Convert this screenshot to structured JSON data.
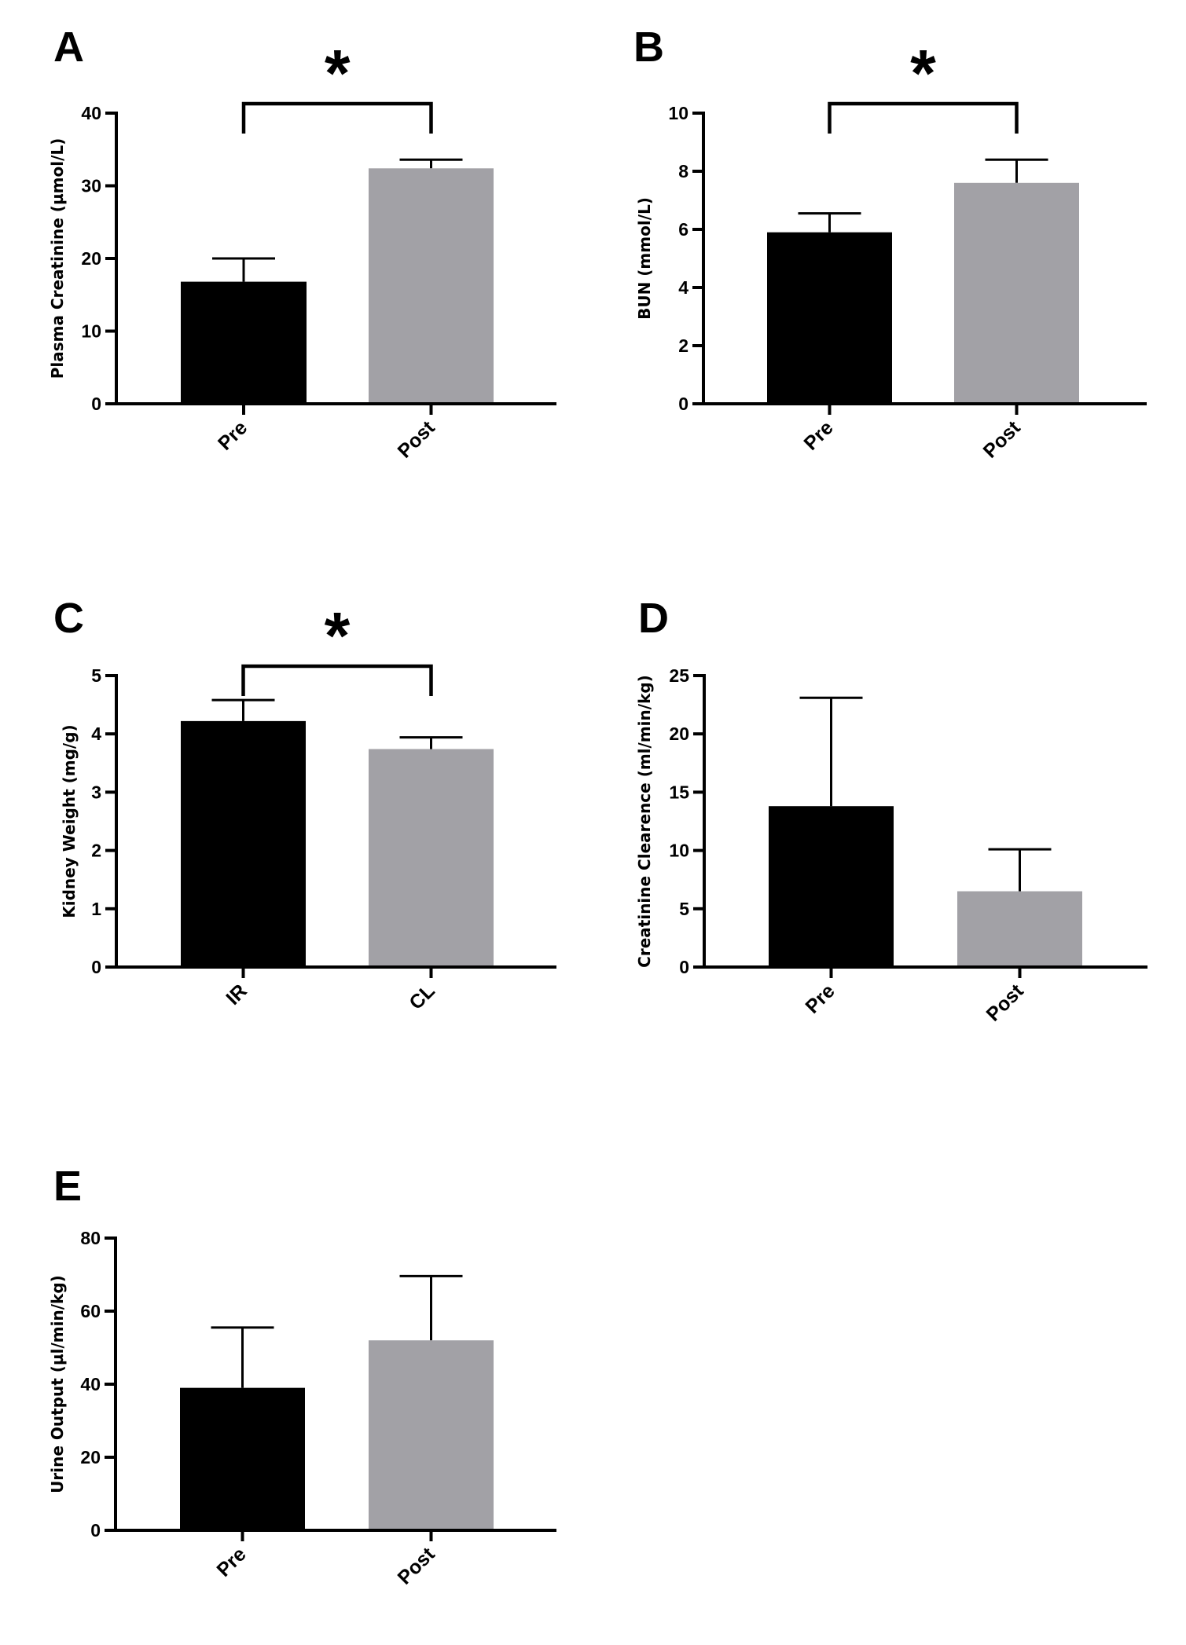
{
  "chart_data": [
    {
      "panel": "A",
      "type": "bar",
      "categories": [
        "Pre",
        "Post"
      ],
      "values": [
        16.8,
        32.4
      ],
      "errors": [
        3.2,
        1.2
      ],
      "colors": [
        "#000000",
        "#a2a1a6"
      ],
      "ylabel": "Plasma Creatinine (µmol/L)",
      "ylim": [
        0,
        40
      ],
      "yticks": [
        "0",
        "10",
        "20",
        "30",
        "40"
      ],
      "significance": "*"
    },
    {
      "panel": "B",
      "type": "bar",
      "categories": [
        "Pre",
        "Post"
      ],
      "values": [
        5.9,
        7.6
      ],
      "errors": [
        0.65,
        0.8
      ],
      "colors": [
        "#000000",
        "#a2a1a6"
      ],
      "ylabel": "BUN (mmol/L)",
      "ylim": [
        0,
        10
      ],
      "yticks": [
        "0",
        "2",
        "4",
        "6",
        "8",
        "10"
      ],
      "significance": "*"
    },
    {
      "panel": "C",
      "type": "bar",
      "categories": [
        "IR",
        "CL"
      ],
      "values": [
        4.22,
        3.74
      ],
      "errors": [
        0.36,
        0.2
      ],
      "colors": [
        "#000000",
        "#a2a1a6"
      ],
      "ylabel": "Kidney Weight (mg/g)",
      "ylim": [
        0,
        5
      ],
      "yticks": [
        "0",
        "1",
        "2",
        "3",
        "4",
        "5"
      ],
      "significance": "*"
    },
    {
      "panel": "D",
      "type": "bar",
      "categories": [
        "Pre",
        "Post"
      ],
      "values": [
        13.8,
        6.5
      ],
      "errors": [
        9.3,
        3.6
      ],
      "colors": [
        "#000000",
        "#a2a1a6"
      ],
      "ylabel": "Creatinine Clearence (ml/min/kg)",
      "ylim": [
        0,
        25
      ],
      "yticks": [
        "0",
        "5",
        "10",
        "15",
        "20",
        "25"
      ],
      "significance": ""
    },
    {
      "panel": "E",
      "type": "bar",
      "categories": [
        "Pre",
        "Post"
      ],
      "values": [
        39,
        52
      ],
      "errors": [
        16.5,
        17.6
      ],
      "colors": [
        "#000000",
        "#a2a1a6"
      ],
      "ylabel": "Urine Output (µl/min/kg)",
      "ylim": [
        0,
        80
      ],
      "yticks": [
        "0",
        "20",
        "40",
        "60",
        "80"
      ],
      "significance": ""
    }
  ]
}
